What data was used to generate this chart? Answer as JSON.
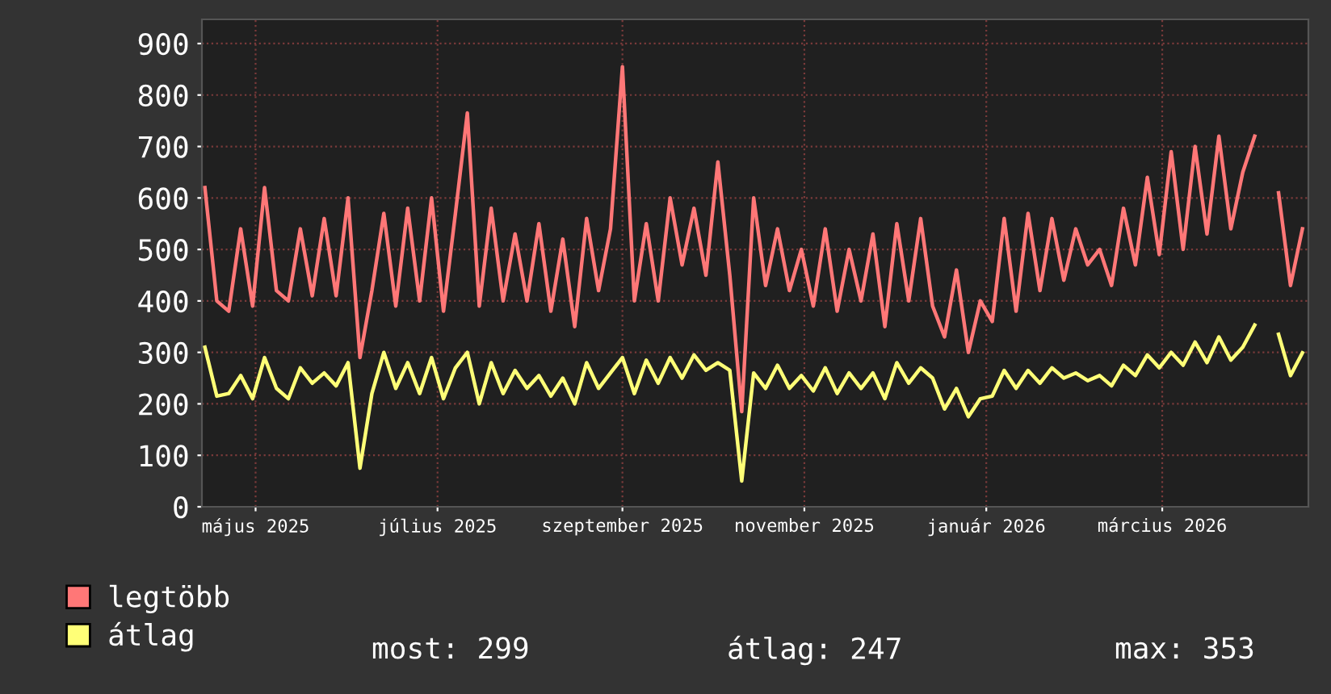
{
  "chart_data": {
    "type": "line",
    "x": [
      "2025-04-14",
      "2025-04-18",
      "2025-04-22",
      "2025-04-26",
      "2025-04-30",
      "2025-05-04",
      "2025-05-08",
      "2025-05-12",
      "2025-05-16",
      "2025-05-20",
      "2025-05-24",
      "2025-05-28",
      "2025-06-01",
      "2025-06-05",
      "2025-06-09",
      "2025-06-13",
      "2025-06-17",
      "2025-06-21",
      "2025-06-25",
      "2025-06-29",
      "2025-07-03",
      "2025-07-07",
      "2025-07-11",
      "2025-07-15",
      "2025-07-19",
      "2025-07-23",
      "2025-07-27",
      "2025-07-31",
      "2025-08-04",
      "2025-08-08",
      "2025-08-12",
      "2025-08-16",
      "2025-08-20",
      "2025-08-24",
      "2025-08-28",
      "2025-09-01",
      "2025-09-05",
      "2025-09-09",
      "2025-09-13",
      "2025-09-17",
      "2025-09-21",
      "2025-09-25",
      "2025-09-29",
      "2025-10-03",
      "2025-10-07",
      "2025-10-11",
      "2025-10-15",
      "2025-10-19",
      "2025-10-23",
      "2025-10-27",
      "2025-10-31",
      "2025-11-04",
      "2025-11-08",
      "2025-11-12",
      "2025-11-16",
      "2025-11-20",
      "2025-11-24",
      "2025-11-28",
      "2025-12-02",
      "2025-12-06",
      "2025-12-10",
      "2025-12-14",
      "2025-12-18",
      "2025-12-22",
      "2025-12-26",
      "2025-12-30",
      "2026-01-03",
      "2026-01-07",
      "2026-01-11",
      "2026-01-15",
      "2026-01-19",
      "2026-01-23",
      "2026-01-27",
      "2026-01-31",
      "2026-02-04",
      "2026-02-08",
      "2026-02-12",
      "2026-02-16",
      "2026-02-20",
      "2026-02-24",
      "2026-02-28",
      "2026-03-04",
      "2026-03-08",
      "2026-03-12",
      "2026-03-16",
      "2026-03-20",
      "2026-03-24",
      "2026-03-28",
      "2026-04-01",
      "2026-04-05",
      "2026-04-09",
      "2026-04-13",
      "2026-04-17"
    ],
    "series": [
      {
        "name": "legtöbb",
        "color": "#ff7777",
        "values": [
          620,
          400,
          380,
          540,
          390,
          620,
          420,
          400,
          540,
          410,
          560,
          410,
          600,
          290,
          420,
          570,
          390,
          580,
          400,
          600,
          380,
          570,
          765,
          390,
          580,
          400,
          530,
          400,
          550,
          380,
          520,
          350,
          560,
          420,
          540,
          855,
          400,
          550,
          400,
          600,
          470,
          580,
          450,
          670,
          450,
          185,
          600,
          430,
          540,
          420,
          500,
          390,
          540,
          380,
          500,
          400,
          530,
          350,
          550,
          400,
          560,
          390,
          330,
          460,
          300,
          400,
          360,
          560,
          380,
          570,
          420,
          560,
          440,
          540,
          470,
          500,
          430,
          580,
          470,
          640,
          490,
          690,
          500,
          700,
          530,
          720,
          540,
          650,
          720,
          null,
          610,
          430,
          540
        ]
      },
      {
        "name": "átlag",
        "color": "#ffff77",
        "values": [
          310,
          215,
          220,
          255,
          210,
          290,
          230,
          210,
          270,
          240,
          260,
          235,
          280,
          75,
          220,
          300,
          230,
          280,
          220,
          290,
          210,
          270,
          300,
          200,
          280,
          220,
          265,
          230,
          255,
          215,
          250,
          200,
          280,
          230,
          260,
          290,
          220,
          285,
          240,
          290,
          250,
          295,
          265,
          280,
          265,
          50,
          260,
          230,
          275,
          230,
          255,
          225,
          270,
          220,
          260,
          230,
          260,
          210,
          280,
          240,
          270,
          250,
          190,
          230,
          175,
          210,
          215,
          265,
          230,
          265,
          240,
          270,
          250,
          260,
          245,
          255,
          235,
          275,
          255,
          295,
          270,
          300,
          275,
          320,
          280,
          330,
          285,
          310,
          353,
          null,
          335,
          255,
          299
        ]
      }
    ],
    "xlim": [
      "2025-04-13",
      "2026-04-19"
    ],
    "xticks": [
      {
        "value": "2025-05-01",
        "label": "május 2025"
      },
      {
        "value": "2025-07-01",
        "label": "július 2025"
      },
      {
        "value": "2025-09-01",
        "label": "szeptember 2025"
      },
      {
        "value": "2025-11-01",
        "label": "november 2025"
      },
      {
        "value": "2026-01-01",
        "label": "január 2026"
      },
      {
        "value": "2026-03-01",
        "label": "március 2026"
      }
    ],
    "ylim": [
      0,
      947
    ],
    "yticks": [
      0,
      100,
      200,
      300,
      400,
      500,
      600,
      700,
      800,
      900
    ],
    "grid": true,
    "legend": "bottom",
    "annotations": [
      "most: 299",
      "átlag: 247",
      "max: 353"
    ]
  }
}
